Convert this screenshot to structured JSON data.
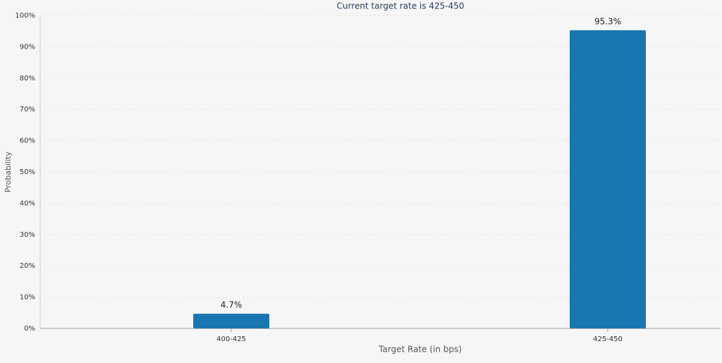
{
  "chart_data": {
    "type": "bar",
    "title": "Current target rate is 425-450",
    "x_label": "Target Rate (in bps)",
    "y_label": "Probability",
    "categories": [
      "400-425",
      "425-450"
    ],
    "values": [
      4.7,
      95.3
    ],
    "value_labels": [
      "4.7%",
      "95.3%"
    ],
    "color": "#1a76b0",
    "ylim": [
      0,
      100
    ],
    "yticks": [
      {
        "value": 0,
        "label": "0%"
      },
      {
        "value": 10,
        "label": "10%"
      },
      {
        "value": 20,
        "label": "20%"
      },
      {
        "value": 30,
        "label": "30%"
      },
      {
        "value": 40,
        "label": "40%"
      },
      {
        "value": 50,
        "label": "50%"
      },
      {
        "value": 60,
        "label": "60%"
      },
      {
        "value": 70,
        "label": "70%"
      },
      {
        "value": 80,
        "label": "80%"
      },
      {
        "value": 90,
        "label": "90%"
      },
      {
        "value": 100,
        "label": "100%"
      }
    ],
    "grid": true
  }
}
